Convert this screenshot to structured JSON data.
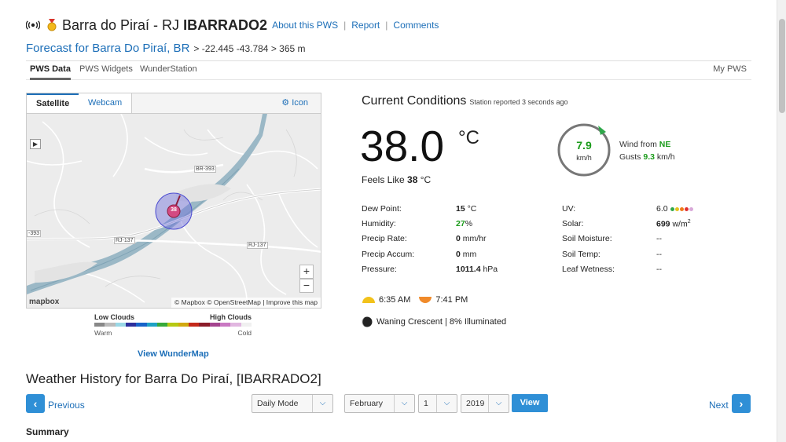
{
  "header": {
    "station_name": "Barra do Piraí - RJ",
    "station_id": "IBARRADO2",
    "links": [
      "About this PWS",
      "Report",
      "Comments"
    ],
    "forecast_link": "Forecast for Barra Do Piraí, BR",
    "coords": "> -22.445 -43.784 > 365 m"
  },
  "tabs": {
    "items": [
      "PWS Data",
      "PWS Widgets",
      "WunderStation"
    ],
    "right": "My PWS"
  },
  "map": {
    "tabs": [
      "Satellite",
      "Webcam"
    ],
    "icon_link": "Icon",
    "marker_value": "38",
    "road_labels": [
      "BR-393",
      "RJ-137",
      "RJ-137",
      "-393"
    ],
    "attribution": "© Mapbox © OpenStreetMap | Improve this map",
    "logo": "mapbox",
    "zoom_in": "+",
    "zoom_out": "−"
  },
  "legend": {
    "low": "Low Clouds",
    "high": "High Clouds",
    "warm": "Warm",
    "cold": "Cold",
    "colors": [
      "#888888",
      "#bbbbbb",
      "#9ad8e6",
      "#2d2f9c",
      "#1763c9",
      "#1ea1c4",
      "#37a93a",
      "#b6c913",
      "#d1a90f",
      "#c4291b",
      "#8b1c2a",
      "#a4448f",
      "#c978c2",
      "#e1b6e0",
      "#f0f0f0"
    ],
    "view_link": "View WunderMap"
  },
  "current": {
    "title": "Current Conditions",
    "reported": "Station reported 3 seconds ago",
    "temp": "38.0",
    "temp_unit": "°C",
    "feels_label": "Feels Like",
    "feels_value": "38",
    "feels_unit": "°C",
    "wind_speed": "7.9",
    "wind_unit": "km/h",
    "wind_from_label": "Wind from",
    "wind_dir": "NE",
    "gusts_label": "Gusts",
    "gusts_value": "9.3",
    "gusts_unit": "km/h",
    "left_rows": [
      {
        "label": "Dew Point:",
        "value": "15",
        "unit": "°C"
      },
      {
        "label": "Humidity:",
        "value": "27",
        "unit": "%"
      },
      {
        "label": "Precip Rate:",
        "value": "0",
        "unit": "mm/hr"
      },
      {
        "label": "Precip Accum:",
        "value": "0",
        "unit": "mm"
      },
      {
        "label": "Pressure:",
        "value": "1011.4",
        "unit": "hPa"
      }
    ],
    "right_rows": [
      {
        "label": "UV:",
        "value": "6.0"
      },
      {
        "label": "Solar:",
        "value": "699",
        "unit": "w/m",
        "sup": "2"
      },
      {
        "label": "Soil Moisture:",
        "value": "--"
      },
      {
        "label": "Soil Temp:",
        "value": "--"
      },
      {
        "label": "Leaf Wetness:",
        "value": "--"
      }
    ],
    "sunrise": "6:35 AM",
    "sunset": "7:41 PM",
    "moon": "Waning Crescent | 8% Illuminated"
  },
  "history": {
    "title": "Weather History for Barra Do Piraí, [IBARRADO2]",
    "previous": "Previous",
    "next": "Next",
    "mode": "Daily Mode",
    "month": "February",
    "day": "1",
    "year": "2019",
    "view": "View",
    "summary": "Summary"
  }
}
